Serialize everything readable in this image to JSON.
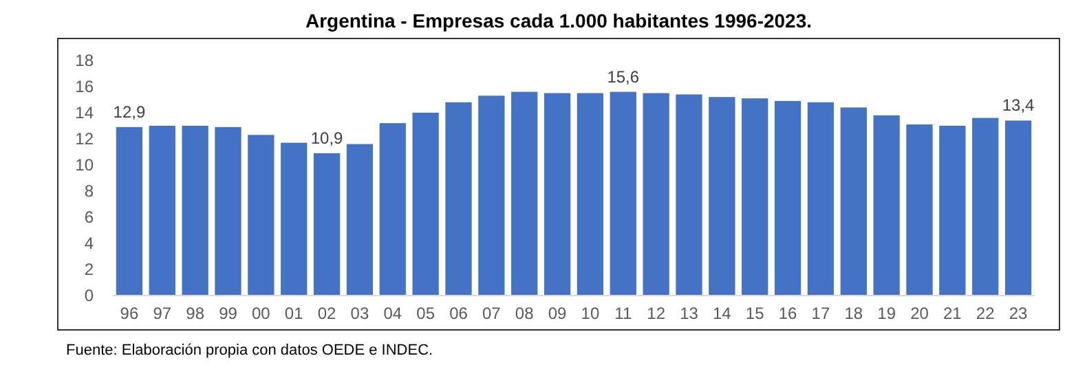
{
  "chart_data": {
    "type": "bar",
    "title": "Argentina - Empresas cada 1.000 habitantes 1996-2023.",
    "categories": [
      "96",
      "97",
      "98",
      "99",
      "00",
      "01",
      "02",
      "03",
      "04",
      "05",
      "06",
      "07",
      "08",
      "09",
      "10",
      "11",
      "12",
      "13",
      "14",
      "15",
      "16",
      "17",
      "18",
      "19",
      "20",
      "21",
      "22",
      "23"
    ],
    "values": [
      12.9,
      13.0,
      13.0,
      12.9,
      12.3,
      11.7,
      10.9,
      11.6,
      13.2,
      14.0,
      14.8,
      15.3,
      15.6,
      15.5,
      15.5,
      15.6,
      15.5,
      15.4,
      15.2,
      15.1,
      14.9,
      14.8,
      14.4,
      13.8,
      13.1,
      13.0,
      13.6,
      13.4
    ],
    "value_labels": [
      "12,9",
      null,
      null,
      null,
      null,
      null,
      "10,9",
      null,
      null,
      null,
      null,
      null,
      null,
      null,
      null,
      "15,6",
      null,
      null,
      null,
      null,
      null,
      null,
      null,
      null,
      null,
      null,
      null,
      "13,4"
    ],
    "color": "#4472c4",
    "ylim": [
      0,
      18
    ],
    "yticks": [
      0,
      2,
      4,
      6,
      8,
      10,
      12,
      14,
      16,
      18
    ],
    "grid": false,
    "annotations": [
      "Fuente: Elaboración propia con datos OEDE e INDEC."
    ]
  }
}
